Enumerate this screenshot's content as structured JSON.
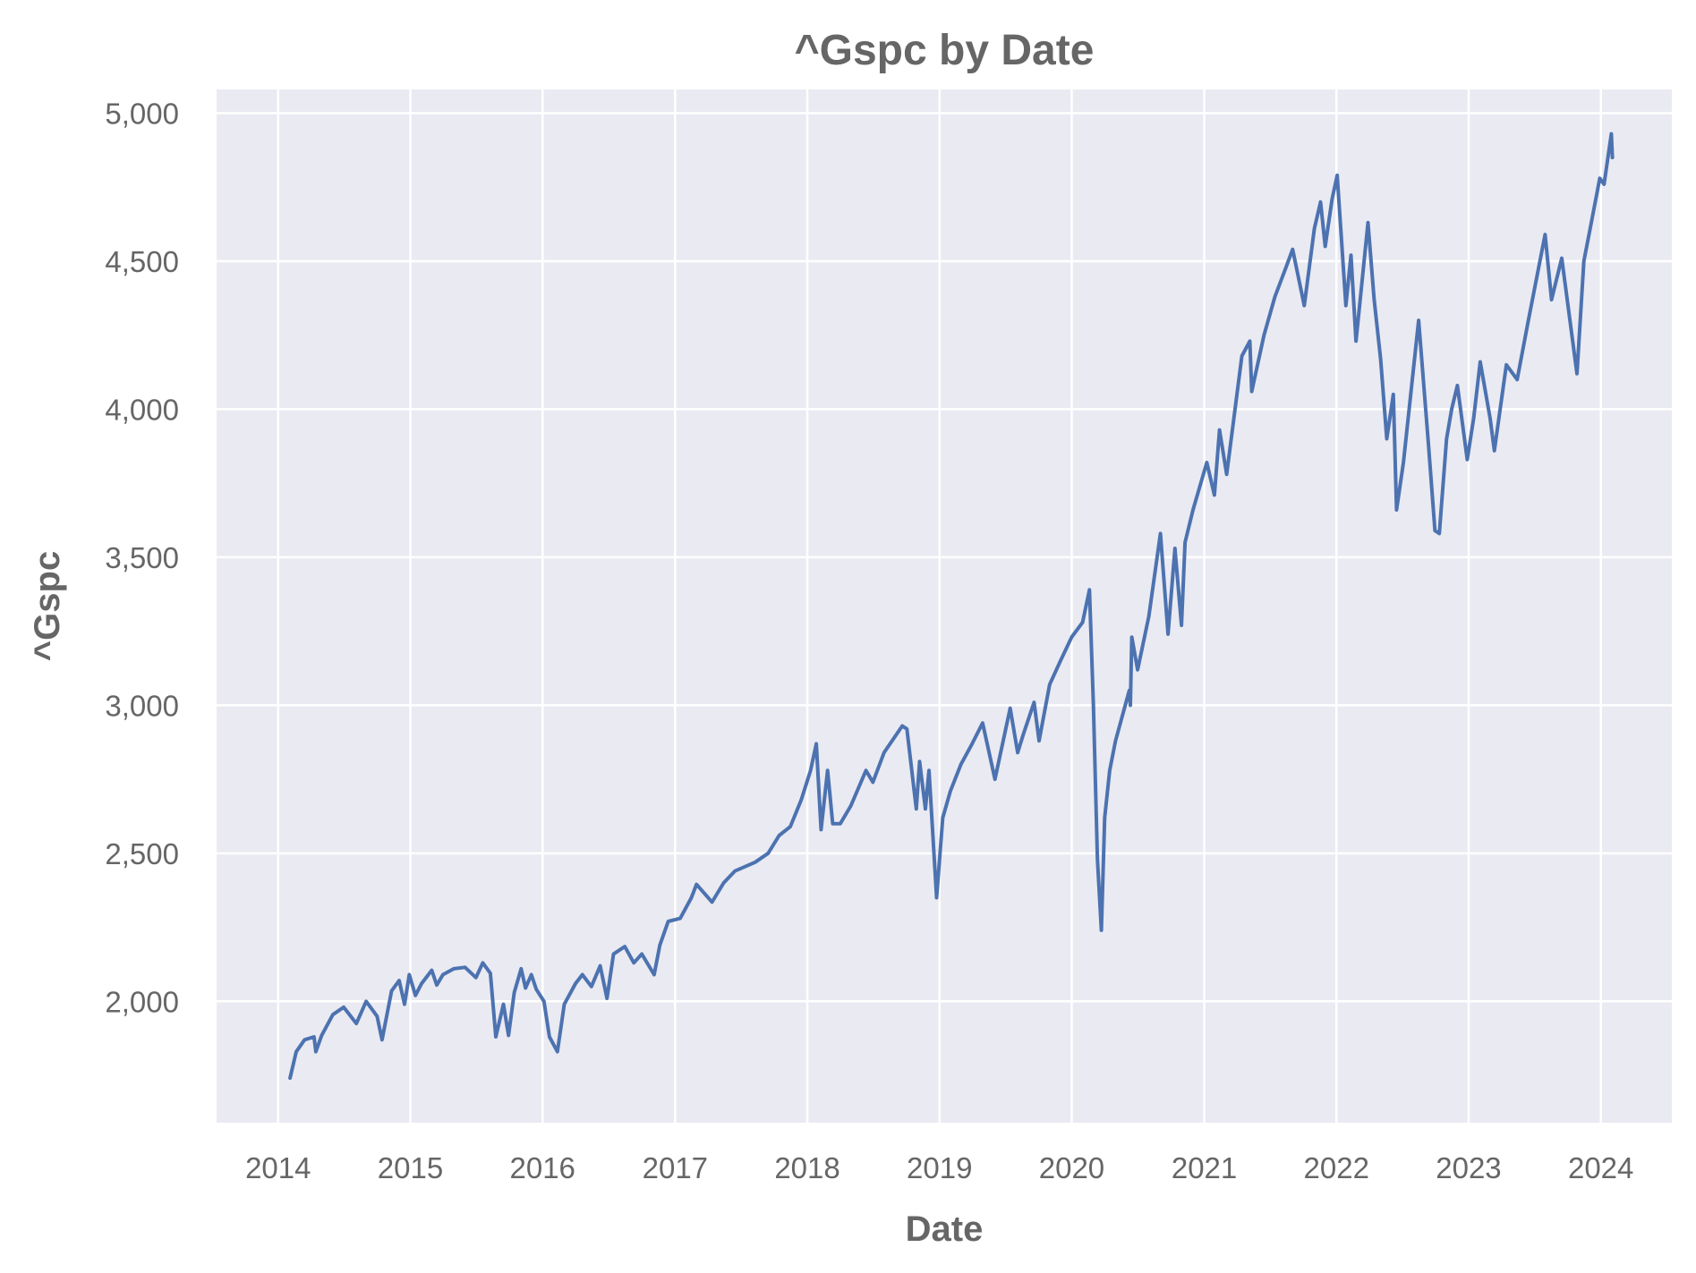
{
  "chart_data": {
    "type": "line",
    "title": "^Gspc by Date",
    "xlabel": "Date",
    "ylabel": "^Gspc",
    "xlim": [
      "2013-07-15",
      "2024-07-15"
    ],
    "ylim": [
      1590,
      5080
    ],
    "x_ticks": [
      "2014",
      "2015",
      "2016",
      "2017",
      "2018",
      "2019",
      "2020",
      "2021",
      "2022",
      "2023",
      "2024"
    ],
    "y_ticks": [
      2000,
      2500,
      3000,
      3500,
      4000,
      4500,
      5000
    ],
    "y_tick_labels": [
      "2,000",
      "2,500",
      "3,000",
      "3,500",
      "4,000",
      "4,500",
      "5,000"
    ],
    "grid": true,
    "background_color": "#eaeaf2",
    "series": [
      {
        "color": "#4c72b0",
        "x": [
          "2014-02-03",
          "2014-02-20",
          "2014-03-15",
          "2014-04-10",
          "2014-04-15",
          "2014-05-01",
          "2014-06-01",
          "2014-07-01",
          "2014-08-05",
          "2014-09-01",
          "2014-10-01",
          "2014-10-15",
          "2014-11-10",
          "2014-12-01",
          "2014-12-16",
          "2014-12-29",
          "2015-01-15",
          "2015-02-01",
          "2015-03-01",
          "2015-03-15",
          "2015-04-01",
          "2015-05-01",
          "2015-06-01",
          "2015-07-01",
          "2015-07-20",
          "2015-08-10",
          "2015-08-25",
          "2015-09-15",
          "2015-09-29",
          "2015-10-15",
          "2015-11-03",
          "2015-11-15",
          "2015-12-01",
          "2015-12-15",
          "2016-01-05",
          "2016-01-20",
          "2016-02-11",
          "2016-03-01",
          "2016-04-01",
          "2016-04-20",
          "2016-05-15",
          "2016-06-08",
          "2016-06-27",
          "2016-07-15",
          "2016-08-15",
          "2016-09-09",
          "2016-10-01",
          "2016-11-04",
          "2016-11-20",
          "2016-12-13",
          "2017-01-15",
          "2017-02-15",
          "2017-03-01",
          "2017-04-13",
          "2017-05-15",
          "2017-06-15",
          "2017-08-10",
          "2017-09-15",
          "2017-10-15",
          "2017-11-15",
          "2017-12-15",
          "2018-01-10",
          "2018-01-26",
          "2018-02-08",
          "2018-02-26",
          "2018-03-12",
          "2018-04-02",
          "2018-05-01",
          "2018-06-12",
          "2018-07-01",
          "2018-08-01",
          "2018-09-20",
          "2018-10-03",
          "2018-10-29",
          "2018-11-07",
          "2018-11-23",
          "2018-12-03",
          "2018-12-24",
          "2019-01-10",
          "2019-01-31",
          "2019-03-01",
          "2019-04-01",
          "2019-04-30",
          "2019-06-03",
          "2019-07-15",
          "2019-08-05",
          "2019-08-20",
          "2019-09-19",
          "2019-10-03",
          "2019-11-01",
          "2019-12-01",
          "2020-01-01",
          "2020-01-31",
          "2020-02-19",
          "2020-03-01",
          "2020-03-12",
          "2020-03-23",
          "2020-04-01",
          "2020-04-15",
          "2020-05-01",
          "2020-06-08",
          "2020-06-11",
          "2020-06-15",
          "2020-07-01",
          "2020-08-01",
          "2020-09-02",
          "2020-09-23",
          "2020-10-12",
          "2020-10-30",
          "2020-11-09",
          "2020-12-01",
          "2021-01-08",
          "2021-01-29",
          "2021-02-12",
          "2021-03-04",
          "2021-04-15",
          "2021-05-07",
          "2021-05-12",
          "2021-06-15",
          "2021-07-15",
          "2021-08-15",
          "2021-09-02",
          "2021-10-04",
          "2021-11-01",
          "2021-11-18",
          "2021-12-01",
          "2021-12-20",
          "2022-01-03",
          "2022-01-27",
          "2022-02-10",
          "2022-02-24",
          "2022-03-29",
          "2022-04-15",
          "2022-05-03",
          "2022-05-20",
          "2022-06-07",
          "2022-06-16",
          "2022-07-05",
          "2022-08-16",
          "2022-09-12",
          "2022-09-30",
          "2022-10-12",
          "2022-11-01",
          "2022-11-15",
          "2022-12-01",
          "2022-12-28",
          "2023-01-15",
          "2023-02-02",
          "2023-03-01",
          "2023-03-13",
          "2023-04-15",
          "2023-05-15",
          "2023-06-15",
          "2023-07-31",
          "2023-08-18",
          "2023-09-15",
          "2023-10-27",
          "2023-11-15",
          "2023-12-01",
          "2023-12-29",
          "2024-01-10",
          "2024-01-30",
          "2024-02-02"
        ],
        "y": [
          1741,
          1830,
          1870,
          1880,
          1830,
          1885,
          1955,
          1980,
          1925,
          2000,
          1950,
          1870,
          2035,
          2070,
          1990,
          2090,
          2020,
          2060,
          2105,
          2055,
          2090,
          2110,
          2115,
          2080,
          2130,
          2095,
          1880,
          1990,
          1885,
          2030,
          2110,
          2045,
          2090,
          2040,
          2000,
          1880,
          1830,
          1990,
          2060,
          2090,
          2050,
          2120,
          2010,
          2160,
          2185,
          2130,
          2160,
          2090,
          2190,
          2270,
          2280,
          2350,
          2395,
          2335,
          2400,
          2440,
          2470,
          2500,
          2560,
          2590,
          2680,
          2780,
          2870,
          2580,
          2780,
          2600,
          2600,
          2660,
          2780,
          2740,
          2840,
          2930,
          2920,
          2650,
          2810,
          2650,
          2780,
          2350,
          2620,
          2710,
          2800,
          2870,
          2940,
          2750,
          2990,
          2840,
          2900,
          3010,
          2880,
          3070,
          3150,
          3230,
          3280,
          3390,
          3000,
          2480,
          2240,
          2620,
          2780,
          2880,
          3050,
          3000,
          3230,
          3120,
          3300,
          3580,
          3240,
          3530,
          3270,
          3550,
          3660,
          3820,
          3710,
          3930,
          3780,
          4180,
          4230,
          4060,
          4250,
          4380,
          4480,
          4540,
          4350,
          4610,
          4700,
          4550,
          4710,
          4790,
          4350,
          4520,
          4230,
          4630,
          4370,
          4170,
          3900,
          4050,
          3660,
          3820,
          4300,
          3880,
          3590,
          3580,
          3900,
          4000,
          4080,
          3830,
          3970,
          4160,
          3970,
          3860,
          4150,
          4100,
          4300,
          4590,
          4370,
          4510,
          4120,
          4500,
          4600,
          4780,
          4760,
          4930,
          4850
        ]
      }
    ]
  }
}
